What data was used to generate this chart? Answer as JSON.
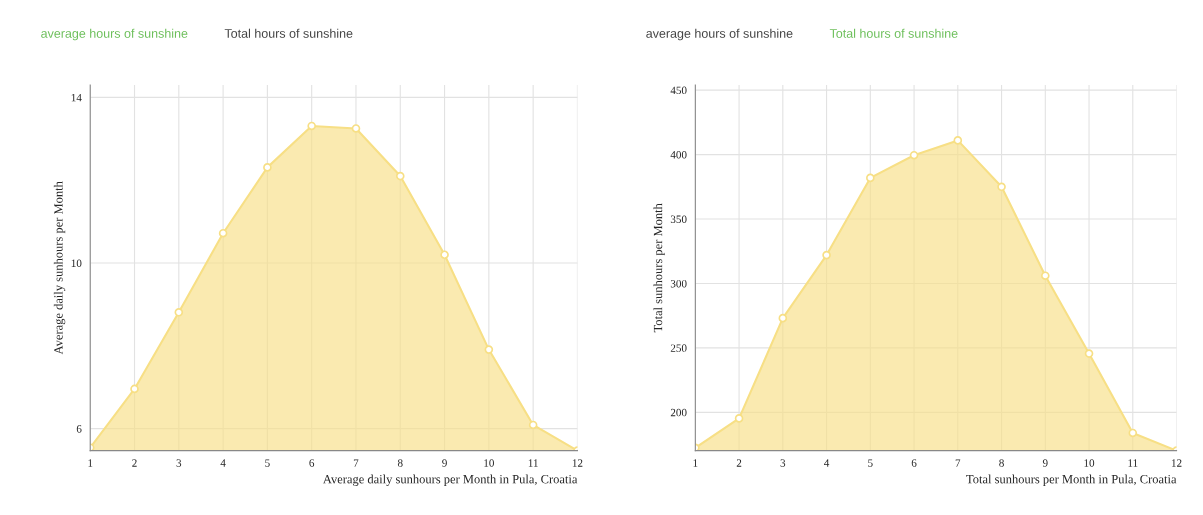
{
  "chart_data": [
    {
      "type": "area",
      "annotations": [
        "average hours of sunshine",
        "Total hours of sunshine"
      ],
      "xlabel": "Average daily sunhours per Month in Pula, Croatia",
      "ylabel": "Average daily sunhours per Month",
      "x": [
        1,
        2,
        3,
        4,
        5,
        6,
        7,
        8,
        9,
        10,
        11,
        12
      ],
      "series": [
        {
          "color": "#f7df85",
          "values": [
            5.54,
            6.96,
            8.81,
            10.72,
            12.31,
            13.31,
            13.25,
            12.1,
            10.2,
            7.91,
            6.09,
            5.47
          ]
        }
      ],
      "xlim": [
        1,
        12
      ],
      "xticks": [
        1,
        2,
        3,
        4,
        5,
        6,
        7,
        8,
        9,
        10,
        11,
        12
      ],
      "ylim": [
        5.47,
        14.3
      ],
      "yticks": [
        6,
        10,
        14
      ],
      "grid": true,
      "marker": "circle",
      "line_style": "solid"
    },
    {
      "type": "area",
      "annotations": [
        "average hours of sunshine",
        "Total hours of sunshine"
      ],
      "xlabel": "Total sunhours per Month in Pula, Croatia",
      "ylabel": "Total sunhours per Month",
      "x": [
        1,
        2,
        3,
        4,
        5,
        6,
        7,
        8,
        9,
        10,
        11,
        12
      ],
      "series": [
        {
          "color": "#f7df85",
          "values": [
            172.5,
            195.3,
            273.1,
            322,
            381.9,
            399.5,
            411,
            375,
            306,
            245.6,
            184,
            170.3
          ]
        }
      ],
      "xlim": [
        1,
        12
      ],
      "xticks": [
        1,
        2,
        3,
        4,
        5,
        6,
        7,
        8,
        9,
        10,
        11,
        12
      ],
      "ylim": [
        170.3,
        454
      ],
      "yticks": [
        200,
        250,
        300,
        350,
        400,
        450
      ],
      "grid": true,
      "marker": "circle",
      "line_style": "solid"
    }
  ]
}
